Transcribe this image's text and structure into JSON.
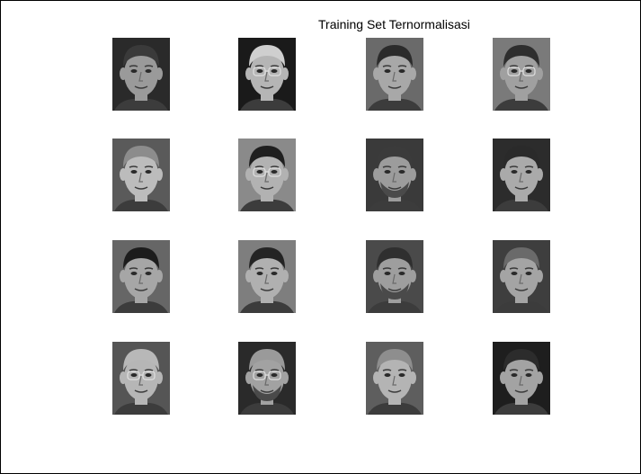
{
  "figure": {
    "title": "Training Set Ternormalisasi"
  },
  "images": [
    {
      "bg": "#2a2a2a",
      "hair": "#3a3a3a",
      "skin": "#9a9a9a",
      "glasses": false,
      "beard": false
    },
    {
      "bg": "#1a1a1a",
      "hair": "#cfcfcf",
      "skin": "#b5b5b5",
      "glasses": true,
      "beard": false
    },
    {
      "bg": "#6a6a6a",
      "hair": "#2b2b2b",
      "skin": "#a8a8a8",
      "glasses": false,
      "beard": false
    },
    {
      "bg": "#7a7a7a",
      "hair": "#2e2e2e",
      "skin": "#a0a0a0",
      "glasses": true,
      "beard": false
    },
    {
      "bg": "#5a5a5a",
      "hair": "#8c8c8c",
      "skin": "#bcbcbc",
      "glasses": false,
      "beard": false
    },
    {
      "bg": "#8a8a8a",
      "hair": "#1f1f1f",
      "skin": "#b2b2b2",
      "glasses": true,
      "beard": false
    },
    {
      "bg": "#3a3a3a",
      "hair": "#3b3b3b",
      "skin": "#9c9c9c",
      "glasses": false,
      "beard": true
    },
    {
      "bg": "#2c2c2c",
      "hair": "#2a2a2a",
      "skin": "#aaaaaa",
      "glasses": false,
      "beard": false
    },
    {
      "bg": "#666666",
      "hair": "#1c1c1c",
      "skin": "#a6a6a6",
      "glasses": false,
      "beard": false
    },
    {
      "bg": "#7e7e7e",
      "hair": "#242424",
      "skin": "#b0b0b0",
      "glasses": false,
      "beard": false
    },
    {
      "bg": "#4a4a4a",
      "hair": "#2f2f2f",
      "skin": "#9e9e9e",
      "glasses": false,
      "beard": true
    },
    {
      "bg": "#3e3e3e",
      "hair": "#6a6a6a",
      "skin": "#a4a4a4",
      "glasses": false,
      "beard": false
    },
    {
      "bg": "#555555",
      "hair": "#b8b8b8",
      "skin": "#b6b6b6",
      "glasses": true,
      "beard": false
    },
    {
      "bg": "#2a2a2a",
      "hair": "#9a9a9a",
      "skin": "#a2a2a2",
      "glasses": true,
      "beard": true
    },
    {
      "bg": "#5e5e5e",
      "hair": "#8e8e8e",
      "skin": "#b4b4b4",
      "glasses": false,
      "beard": false
    },
    {
      "bg": "#1e1e1e",
      "hair": "#2c2c2c",
      "skin": "#a3a3a3",
      "glasses": false,
      "beard": false
    }
  ]
}
